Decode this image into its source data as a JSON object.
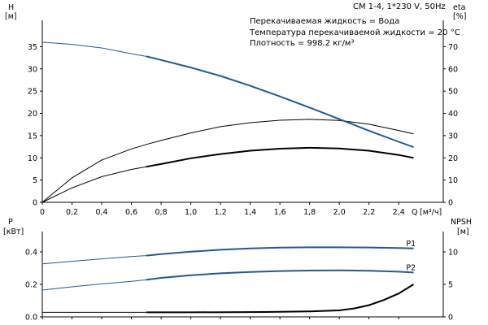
{
  "header": {
    "title": "CM 1-4, 1*230 V, 50Hz",
    "info_lines": [
      "Перекачиваемая жидкость = Вода",
      "Температура перекачиваемой жидкости = 20 °C",
      "Плотность = 998.2 кг/м³"
    ]
  },
  "colors": {
    "axis": "#000000",
    "head_curve": "#1f5a96",
    "power_curves": "#1f5a96",
    "eta_curve": "#000000",
    "npsh_curve": "#000000"
  },
  "chart_data": [
    {
      "type": "line",
      "name": "H-eta",
      "x_label": "Q",
      "x_unit": "[м³/ч]",
      "y_left_label": "H",
      "y_left_unit": "[м]",
      "y_right_label": "eta",
      "y_right_unit": "[%]",
      "xlim": [
        0,
        2.7
      ],
      "y_left_lim": [
        0,
        40
      ],
      "y_right_lim": [
        0,
        80
      ],
      "x_ticks": [
        "0",
        "0,2",
        "0,4",
        "0,6",
        "0,8",
        "1,0",
        "1,2",
        "1,4",
        "1,6",
        "1,8",
        "2,0",
        "2,2",
        "2,4"
      ],
      "y_left_ticks": [
        "0",
        "5",
        "10",
        "15",
        "20",
        "25",
        "30",
        "35"
      ],
      "y_right_ticks": [
        "0",
        "10",
        "20",
        "30",
        "40",
        "50",
        "60",
        "70"
      ],
      "grid": false,
      "series": [
        {
          "name": "H",
          "axis": "left",
          "x": [
            0,
            0.2,
            0.4,
            0.6,
            0.7,
            0.8,
            1.0,
            1.2,
            1.4,
            1.6,
            1.8,
            2.0,
            2.2,
            2.4,
            2.5
          ],
          "y": [
            36.0,
            35.5,
            34.7,
            33.4,
            32.8,
            32.0,
            30.3,
            28.4,
            26.2,
            23.8,
            21.3,
            18.7,
            16.1,
            13.6,
            12.4
          ],
          "thick_from_x": 0.7
        },
        {
          "name": "eta",
          "axis": "right",
          "x": [
            0,
            0.2,
            0.4,
            0.6,
            0.7,
            0.8,
            1.0,
            1.2,
            1.4,
            1.6,
            1.8,
            2.0,
            2.2,
            2.4,
            2.5
          ],
          "y": [
            0,
            6.5,
            11.5,
            14.8,
            16.0,
            17.2,
            19.8,
            21.7,
            23.2,
            24.1,
            24.5,
            24.2,
            23.2,
            21.3,
            20.0
          ],
          "thick_from_x": 0.7
        },
        {
          "name": "eta-upper",
          "axis": "right",
          "x": [
            0,
            0.2,
            0.4,
            0.6,
            0.7,
            0.8,
            1.0,
            1.2,
            1.4,
            1.6,
            1.8,
            2.0,
            2.2,
            2.4,
            2.5
          ],
          "y": [
            0,
            11.0,
            19.0,
            24.0,
            26.0,
            27.8,
            31.2,
            34.0,
            35.8,
            36.9,
            37.3,
            36.8,
            35.1,
            32.3,
            30.8
          ],
          "thick_from_x": null
        }
      ]
    },
    {
      "type": "line",
      "name": "P-NPSH",
      "y_left_label": "P",
      "y_left_unit": "[кВт]",
      "y_right_label": "NPSH",
      "y_right_unit": "[м]",
      "xlim": [
        0,
        2.7
      ],
      "y_left_lim": [
        0,
        0.5
      ],
      "y_right_lim": [
        0,
        12.5
      ],
      "y_left_ticks": [
        "0.0",
        "0.2",
        "0.4"
      ],
      "y_right_ticks": [
        "0",
        "5",
        "10"
      ],
      "grid": false,
      "series": [
        {
          "name": "P1",
          "axis": "left",
          "x": [
            0,
            0.2,
            0.4,
            0.6,
            0.7,
            0.8,
            1.0,
            1.2,
            1.4,
            1.6,
            1.8,
            2.0,
            2.2,
            2.4,
            2.5
          ],
          "y": [
            0.326,
            0.342,
            0.357,
            0.371,
            0.377,
            0.386,
            0.401,
            0.413,
            0.421,
            0.426,
            0.428,
            0.428,
            0.427,
            0.424,
            0.421
          ],
          "thick_from_x": 0.7
        },
        {
          "name": "P2",
          "axis": "left",
          "x": [
            0,
            0.2,
            0.4,
            0.6,
            0.7,
            0.8,
            1.0,
            1.2,
            1.4,
            1.6,
            1.8,
            2.0,
            2.2,
            2.4,
            2.5
          ],
          "y": [
            0.165,
            0.185,
            0.203,
            0.219,
            0.228,
            0.24,
            0.256,
            0.268,
            0.276,
            0.282,
            0.285,
            0.286,
            0.284,
            0.278,
            0.273
          ],
          "thick_from_x": 0.7
        },
        {
          "name": "NPSH",
          "axis": "right",
          "x": [
            0,
            0.4,
            0.7,
            1.0,
            1.5,
            1.8,
            2.0,
            2.1,
            2.2,
            2.3,
            2.4,
            2.5
          ],
          "y": [
            0.7,
            0.7,
            0.7,
            0.7,
            0.75,
            0.85,
            1.0,
            1.3,
            1.8,
            2.6,
            3.6,
            5.0
          ],
          "thick_from_x": 0.7
        }
      ]
    }
  ]
}
